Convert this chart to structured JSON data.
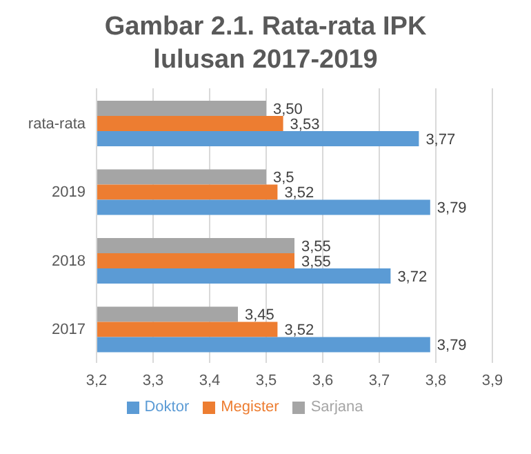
{
  "chart_data": {
    "type": "bar",
    "orientation": "horizontal",
    "title": "Gambar 2.1. Rata-rata IPK lulusan 2017-2019",
    "categories": [
      "rata-rata",
      "2019",
      "2018",
      "2017"
    ],
    "series": [
      {
        "name": "Sarjana",
        "color": "#a5a5a5",
        "values": [
          3.5,
          3.5,
          3.55,
          3.45
        ],
        "value_labels": [
          "3,50",
          "3,5",
          "3,55",
          "3,45"
        ]
      },
      {
        "name": "Megister",
        "color": "#ed7d31",
        "values": [
          3.53,
          3.52,
          3.55,
          3.52
        ],
        "value_labels": [
          "3,53",
          "3,52",
          "3,55",
          "3,52"
        ]
      },
      {
        "name": "Doktor",
        "color": "#5b9bd5",
        "values": [
          3.77,
          3.79,
          3.72,
          3.79
        ],
        "value_labels": [
          "3,77",
          "3,79",
          "3,72",
          "3,79"
        ]
      }
    ],
    "xlim": [
      3.2,
      3.9
    ],
    "xticks": [
      {
        "value": 3.2,
        "label": "3,2"
      },
      {
        "value": 3.3,
        "label": "3,3"
      },
      {
        "value": 3.4,
        "label": "3,4"
      },
      {
        "value": 3.5,
        "label": "3,5"
      },
      {
        "value": 3.6,
        "label": "3,6"
      },
      {
        "value": 3.7,
        "label": "3,7"
      },
      {
        "value": 3.8,
        "label": "3,8"
      },
      {
        "value": 3.9,
        "label": "3,9"
      }
    ],
    "grid": "x",
    "legend": "bottom"
  }
}
